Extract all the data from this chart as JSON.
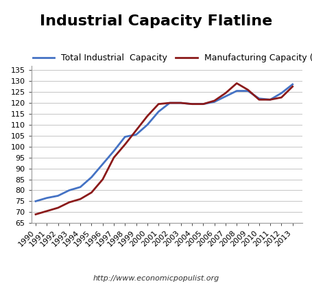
{
  "title": "Industrial Capacity Flatline",
  "subtitle": "http://www.economicpopulist.org",
  "years": [
    1990,
    1991,
    1992,
    1993,
    1994,
    1995,
    1996,
    1997,
    1998,
    1999,
    2000,
    2001,
    2002,
    2003,
    2004,
    2005,
    2006,
    2007,
    2008,
    2009,
    2010,
    2011,
    2012,
    2013
  ],
  "total_industrial": [
    75.0,
    76.5,
    77.5,
    80.0,
    81.5,
    86.0,
    92.0,
    98.0,
    104.5,
    105.5,
    110.0,
    116.0,
    120.0,
    120.0,
    119.5,
    119.5,
    120.5,
    123.0,
    125.5,
    125.5,
    122.0,
    121.5,
    124.5,
    128.5
  ],
  "manufacturing_naics": [
    69.0,
    70.5,
    72.0,
    74.5,
    76.0,
    79.0,
    85.0,
    95.0,
    101.0,
    107.5,
    114.0,
    119.5,
    120.0,
    120.0,
    119.5,
    119.5,
    121.0,
    124.5,
    129.0,
    126.0,
    121.5,
    121.5,
    122.5,
    127.5
  ],
  "line1_color": "#4472C4",
  "line2_color": "#8B1A1A",
  "ylim": [
    65,
    137
  ],
  "yticks": [
    65,
    70,
    75,
    80,
    85,
    90,
    95,
    100,
    105,
    110,
    115,
    120,
    125,
    130,
    135
  ],
  "legend_label1": "Total Industrial  Capacity",
  "legend_label2": "Manufacturing Capacity (NAICS)",
  "bg_color": "#FFFFFF",
  "grid_color": "#BBBBBB",
  "title_fontsize": 16,
  "label_fontsize": 9,
  "tick_fontsize": 8
}
